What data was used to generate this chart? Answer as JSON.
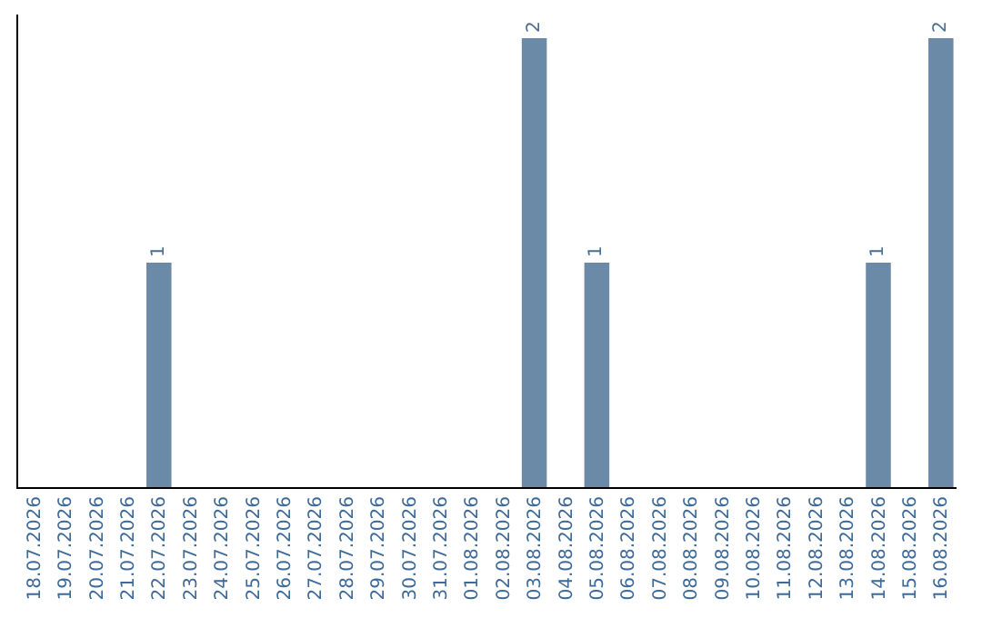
{
  "chart_data": {
    "type": "bar",
    "categories": [
      "18.07.2026",
      "19.07.2026",
      "20.07.2026",
      "21.07.2026",
      "22.07.2026",
      "23.07.2026",
      "24.07.2026",
      "25.07.2026",
      "26.07.2026",
      "27.07.2026",
      "28.07.2026",
      "29.07.2026",
      "30.07.2026",
      "31.07.2026",
      "01.08.2026",
      "02.08.2026",
      "03.08.2026",
      "04.08.2026",
      "05.08.2026",
      "06.08.2026",
      "07.08.2026",
      "08.08.2026",
      "09.08.2026",
      "10.08.2026",
      "11.08.2026",
      "12.08.2026",
      "13.08.2026",
      "14.08.2026",
      "15.08.2026",
      "16.08.2026"
    ],
    "values": [
      0,
      0,
      0,
      0,
      1,
      0,
      0,
      0,
      0,
      0,
      0,
      0,
      0,
      0,
      0,
      0,
      2,
      0,
      1,
      0,
      0,
      0,
      0,
      0,
      0,
      0,
      0,
      1,
      0,
      2
    ],
    "value_labels": [
      null,
      null,
      null,
      null,
      "1",
      null,
      null,
      null,
      null,
      null,
      null,
      null,
      null,
      null,
      null,
      null,
      "2",
      null,
      "1",
      null,
      null,
      null,
      null,
      null,
      null,
      null,
      null,
      "1",
      null,
      "2"
    ],
    "color": "#6b8aa8",
    "tick_labels": "x"
  }
}
